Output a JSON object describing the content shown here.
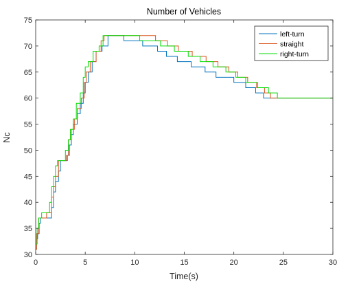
{
  "chart_data": {
    "type": "line",
    "title": "Number of Vehicles",
    "xlabel": "Time(s)",
    "ylabel": "Nc",
    "xlim": [
      0,
      30
    ],
    "ylim": [
      30,
      75
    ],
    "x_ticks": [
      0,
      5,
      10,
      15,
      20,
      25,
      30
    ],
    "y_ticks": [
      30,
      35,
      40,
      45,
      50,
      55,
      60,
      65,
      70,
      75
    ],
    "grid": false,
    "legend_position": "top-right",
    "step": true,
    "series": [
      {
        "name": "left-turn",
        "color": "#0072BD",
        "points": [
          [
            0,
            31
          ],
          [
            0.1,
            33
          ],
          [
            0.2,
            34
          ],
          [
            0.35,
            36
          ],
          [
            0.5,
            37
          ],
          [
            1.6,
            39
          ],
          [
            1.8,
            42
          ],
          [
            2.0,
            44
          ],
          [
            2.3,
            46
          ],
          [
            2.5,
            48
          ],
          [
            3.2,
            49
          ],
          [
            3.4,
            51
          ],
          [
            3.6,
            53
          ],
          [
            3.8,
            55
          ],
          [
            4.2,
            57
          ],
          [
            4.5,
            59
          ],
          [
            4.8,
            61
          ],
          [
            5.0,
            63
          ],
          [
            5.3,
            65
          ],
          [
            5.7,
            67
          ],
          [
            6.1,
            69
          ],
          [
            6.7,
            70
          ],
          [
            7.3,
            72
          ],
          [
            8.9,
            71
          ],
          [
            10.8,
            70
          ],
          [
            12.3,
            69
          ],
          [
            13.2,
            68
          ],
          [
            14.3,
            67
          ],
          [
            15.7,
            66
          ],
          [
            17.1,
            65
          ],
          [
            18.2,
            64
          ],
          [
            20.0,
            63
          ],
          [
            21.2,
            62
          ],
          [
            22.2,
            61
          ],
          [
            23.0,
            60
          ],
          [
            30,
            60
          ]
        ]
      },
      {
        "name": "straight",
        "color": "#D95319",
        "points": [
          [
            0,
            31
          ],
          [
            0.1,
            34
          ],
          [
            0.3,
            37
          ],
          [
            1.1,
            38
          ],
          [
            1.6,
            41
          ],
          [
            1.8,
            43
          ],
          [
            2.0,
            45
          ],
          [
            2.3,
            48
          ],
          [
            3.1,
            49
          ],
          [
            3.3,
            52
          ],
          [
            3.6,
            54
          ],
          [
            3.9,
            56
          ],
          [
            4.2,
            58
          ],
          [
            4.6,
            60
          ],
          [
            4.9,
            63
          ],
          [
            5.1,
            65
          ],
          [
            5.5,
            67
          ],
          [
            6.1,
            69
          ],
          [
            6.6,
            71
          ],
          [
            6.9,
            72
          ],
          [
            12.1,
            71
          ],
          [
            13.3,
            70
          ],
          [
            14.4,
            69
          ],
          [
            15.8,
            68
          ],
          [
            17.2,
            67
          ],
          [
            18.4,
            66
          ],
          [
            19.5,
            65
          ],
          [
            20.4,
            64
          ],
          [
            21.4,
            63
          ],
          [
            22.3,
            62
          ],
          [
            23.1,
            61
          ],
          [
            23.7,
            60
          ],
          [
            30,
            60
          ]
        ]
      },
      {
        "name": "right-turn",
        "color": "#00DD00",
        "points": [
          [
            0,
            32
          ],
          [
            0.15,
            35
          ],
          [
            0.3,
            37
          ],
          [
            0.6,
            38
          ],
          [
            1.4,
            40
          ],
          [
            1.6,
            43
          ],
          [
            1.8,
            45
          ],
          [
            2.0,
            47
          ],
          [
            2.2,
            48
          ],
          [
            3.0,
            50
          ],
          [
            3.3,
            52
          ],
          [
            3.5,
            54
          ],
          [
            3.8,
            56
          ],
          [
            4.1,
            59
          ],
          [
            4.5,
            61
          ],
          [
            4.8,
            64
          ],
          [
            5.0,
            66
          ],
          [
            5.3,
            67
          ],
          [
            5.8,
            69
          ],
          [
            6.4,
            70
          ],
          [
            6.8,
            72
          ],
          [
            10.5,
            71
          ],
          [
            12.6,
            70
          ],
          [
            14.0,
            69
          ],
          [
            15.4,
            68
          ],
          [
            16.6,
            67
          ],
          [
            17.9,
            66
          ],
          [
            19.2,
            65
          ],
          [
            20.2,
            64
          ],
          [
            21.2,
            63
          ],
          [
            22.4,
            62
          ],
          [
            23.5,
            61
          ],
          [
            24.4,
            60
          ],
          [
            30,
            60
          ]
        ]
      }
    ]
  }
}
